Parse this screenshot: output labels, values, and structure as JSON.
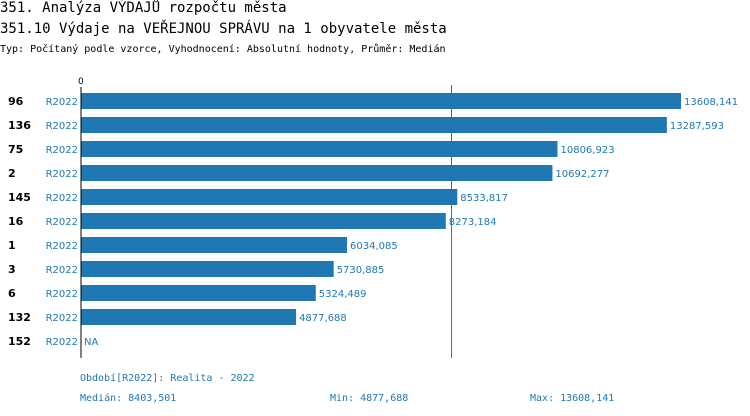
{
  "title_line1": "351. Analýza VÝDAJŮ rozpočtu města",
  "title_line2": "351.10 Výdaje na VEŘEJNOU SPRÁVU na 1 obyvatele města",
  "subtitle": "Typ: Počítaný podle vzorce, Vyhodnocení: Absolutní hodnoty, Průměr: Medián",
  "footer": {
    "period": "Období[R2022]: Realita - 2022",
    "median": "Medián: 8403,501",
    "min": "Min: 4877,688",
    "max": "Max: 13608,141"
  },
  "colors": {
    "bar": "#1f77b4",
    "label": "#1f77b4",
    "axis": "#000000"
  },
  "chart_data": {
    "type": "bar",
    "orientation": "horizontal",
    "axis_zero_label": "0",
    "series_label": "R2022",
    "median": 8403.501,
    "xlim": [
      0,
      13608.141
    ],
    "rows": [
      {
        "id": "96",
        "series": "R2022",
        "value": 13608.141,
        "label": "13608,141"
      },
      {
        "id": "136",
        "series": "R2022",
        "value": 13287.593,
        "label": "13287,593"
      },
      {
        "id": "75",
        "series": "R2022",
        "value": 10806.923,
        "label": "10806,923"
      },
      {
        "id": "2",
        "series": "R2022",
        "value": 10692.277,
        "label": "10692,277"
      },
      {
        "id": "145",
        "series": "R2022",
        "value": 8533.817,
        "label": "8533,817"
      },
      {
        "id": "16",
        "series": "R2022",
        "value": 8273.184,
        "label": "8273,184"
      },
      {
        "id": "1",
        "series": "R2022",
        "value": 6034.085,
        "label": "6034,085"
      },
      {
        "id": "3",
        "series": "R2022",
        "value": 5730.885,
        "label": "5730,885"
      },
      {
        "id": "6",
        "series": "R2022",
        "value": 5324.489,
        "label": "5324,489"
      },
      {
        "id": "132",
        "series": "R2022",
        "value": 4877.688,
        "label": "4877,688"
      },
      {
        "id": "152",
        "series": "R2022",
        "value": null,
        "label": "NA"
      }
    ]
  }
}
